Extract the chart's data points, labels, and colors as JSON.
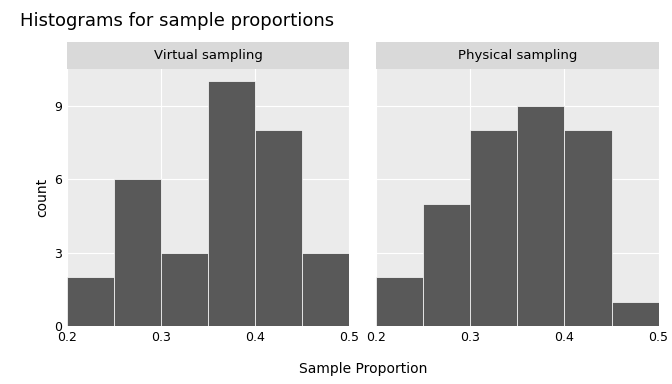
{
  "title": "Histograms for sample proportions",
  "xlabel": "Sample Proportion",
  "ylabel": "count",
  "panel_titles": [
    "Virtual sampling",
    "Physical sampling"
  ],
  "bin_edges": [
    0.2,
    0.25,
    0.3,
    0.35,
    0.4,
    0.45,
    0.5
  ],
  "virtual_counts": [
    2,
    6,
    3,
    10,
    8,
    3
  ],
  "physical_counts": [
    2,
    5,
    8,
    9,
    8,
    1
  ],
  "bar_color": "#595959",
  "bar_edge_color": "white",
  "background_panel": "#EBEBEB",
  "background_fig": "#FFFFFF",
  "panel_header_color": "#D9D9D9",
  "ylim": [
    0,
    10.5
  ],
  "yticks": [
    0,
    3,
    6,
    9
  ],
  "xticks": [
    0.2,
    0.3,
    0.4,
    0.5
  ],
  "title_fontsize": 13,
  "axis_label_fontsize": 10,
  "tick_fontsize": 9,
  "panel_title_fontsize": 9.5
}
